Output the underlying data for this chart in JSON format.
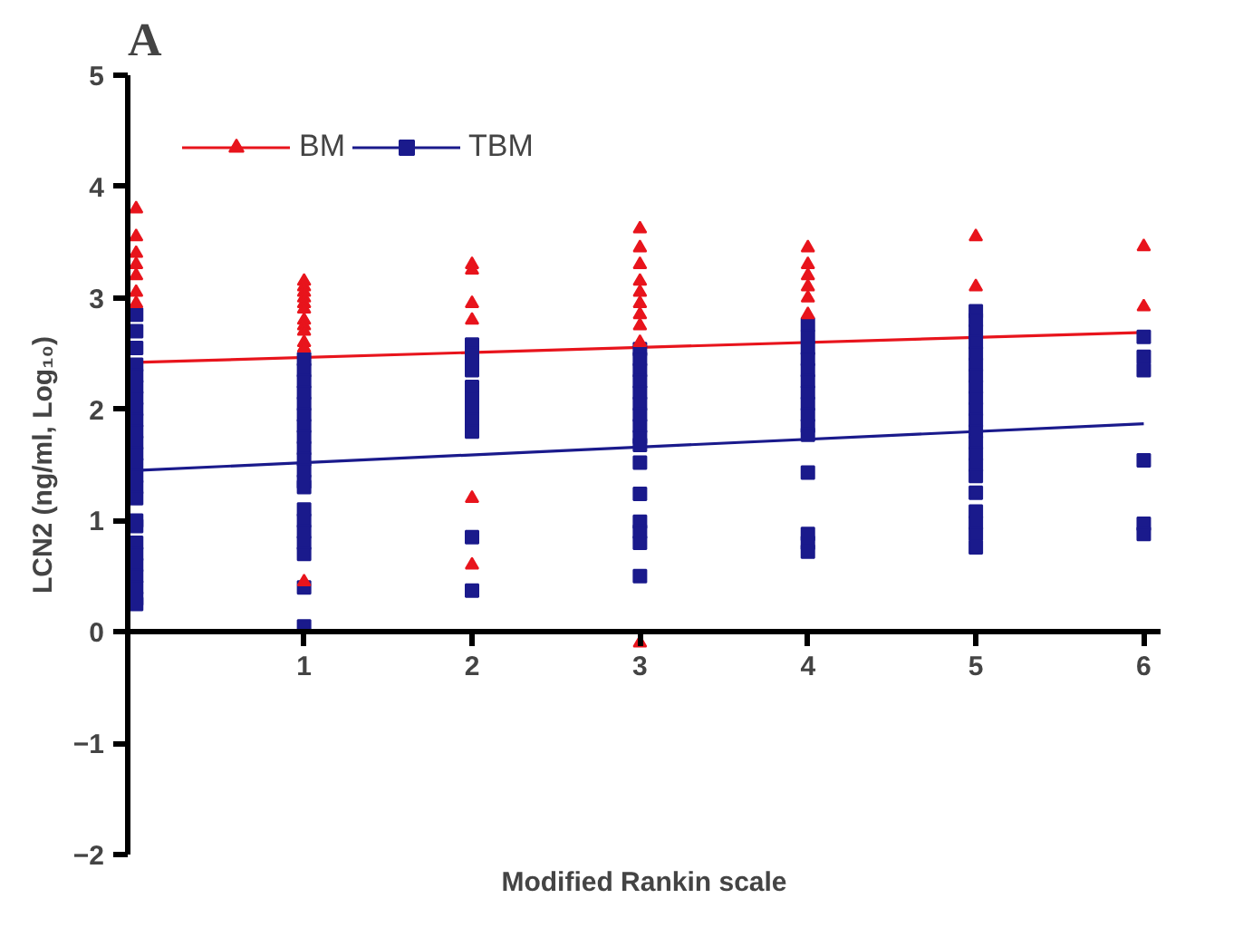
{
  "chart_data": {
    "type": "scatter",
    "title": "A",
    "xlabel": "Modified Rankin scale",
    "ylabel": "LCN2 (ng/ml, Log₁₀)",
    "xlim": [
      -0.05,
      6.1
    ],
    "ylim": [
      -2,
      5
    ],
    "xticks": [
      1,
      2,
      3,
      4,
      5,
      6
    ],
    "yticks": [
      -2,
      -1,
      0,
      1,
      2,
      3,
      4,
      5
    ],
    "grid": false,
    "legend": "top left",
    "series": [
      {
        "name": "BM",
        "marker": "triangle",
        "color": "#e8141c",
        "x": [
          0,
          0,
          0,
          0,
          0,
          0,
          0,
          1,
          1,
          1,
          1,
          1,
          1,
          1,
          1,
          1,
          1,
          1,
          1,
          2,
          2,
          2,
          2,
          2,
          2,
          3,
          3,
          3,
          3,
          3,
          3,
          3,
          3,
          3,
          3,
          4,
          4,
          4,
          4,
          4,
          4,
          5,
          5,
          6,
          6
        ],
        "values": [
          3.8,
          3.55,
          3.4,
          3.3,
          3.2,
          3.05,
          2.95,
          3.15,
          3.1,
          3.05,
          3.0,
          2.95,
          2.9,
          2.8,
          2.75,
          2.7,
          2.6,
          2.55,
          0.45,
          3.3,
          3.25,
          2.95,
          2.8,
          1.2,
          0.6,
          3.62,
          3.45,
          3.3,
          3.15,
          3.05,
          2.95,
          2.85,
          2.75,
          2.6,
          -0.1,
          3.45,
          3.3,
          3.2,
          3.1,
          3.0,
          2.85,
          3.55,
          3.1,
          3.46,
          2.92
        ]
      },
      {
        "name": "TBM",
        "marker": "square",
        "color": "#1a1a8c",
        "x": [
          0,
          0,
          0,
          0,
          0,
          0,
          0,
          0,
          0,
          0,
          0,
          0,
          0,
          0,
          0,
          0,
          0,
          0,
          0,
          0,
          0,
          0,
          0,
          0,
          0,
          1,
          1,
          1,
          1,
          1,
          1,
          1,
          1,
          1,
          1,
          1,
          1,
          1,
          1,
          1,
          1,
          1,
          1,
          1,
          1,
          2,
          2,
          2,
          2,
          2,
          2,
          2,
          2,
          2,
          2,
          2,
          3,
          3,
          3,
          3,
          3,
          3,
          3,
          3,
          3,
          3,
          3,
          3,
          3,
          3,
          3,
          3,
          4,
          4,
          4,
          4,
          4,
          4,
          4,
          4,
          4,
          4,
          4,
          4,
          4,
          4,
          4,
          5,
          5,
          5,
          5,
          5,
          5,
          5,
          5,
          5,
          5,
          5,
          5,
          5,
          5,
          5,
          5,
          5,
          5,
          5,
          5,
          5,
          6,
          6,
          6,
          6,
          6,
          6
        ],
        "values": [
          2.85,
          2.7,
          2.55,
          2.4,
          2.3,
          2.2,
          2.1,
          2.0,
          1.9,
          1.8,
          1.7,
          1.6,
          1.5,
          1.4,
          1.3,
          1.2,
          1.0,
          0.95,
          0.8,
          0.7,
          0.6,
          0.5,
          0.4,
          0.3,
          0.25,
          2.45,
          2.35,
          2.25,
          2.15,
          2.05,
          1.95,
          1.85,
          1.75,
          1.65,
          1.55,
          1.45,
          1.35,
          1.3,
          1.1,
          1.0,
          0.9,
          0.8,
          0.7,
          0.4,
          0.05,
          2.58,
          2.5,
          2.42,
          2.35,
          2.2,
          2.1,
          2.0,
          1.9,
          1.8,
          0.85,
          0.37,
          2.54,
          2.45,
          2.35,
          2.25,
          2.15,
          2.05,
          1.95,
          1.85,
          1.75,
          1.68,
          1.52,
          1.24,
          0.99,
          0.9,
          0.8,
          0.5,
          2.76,
          2.65,
          2.55,
          2.45,
          2.35,
          2.25,
          2.15,
          2.05,
          1.95,
          1.85,
          1.77,
          1.43,
          0.88,
          0.8,
          0.72,
          2.88,
          2.8,
          2.7,
          2.6,
          2.5,
          2.4,
          2.3,
          2.2,
          2.1,
          2.0,
          1.9,
          1.8,
          1.7,
          1.6,
          1.5,
          1.4,
          1.25,
          1.08,
          0.98,
          0.88,
          0.76,
          2.65,
          2.47,
          2.35,
          1.54,
          0.97,
          0.88
        ]
      },
      {
        "type": "line",
        "color": "#e8141c",
        "x": [
          0,
          6
        ],
        "values": [
          2.42,
          2.69
        ]
      },
      {
        "type": "line",
        "color": "#1a1a8c",
        "x": [
          0,
          6
        ],
        "values": [
          1.45,
          1.87
        ]
      }
    ]
  }
}
